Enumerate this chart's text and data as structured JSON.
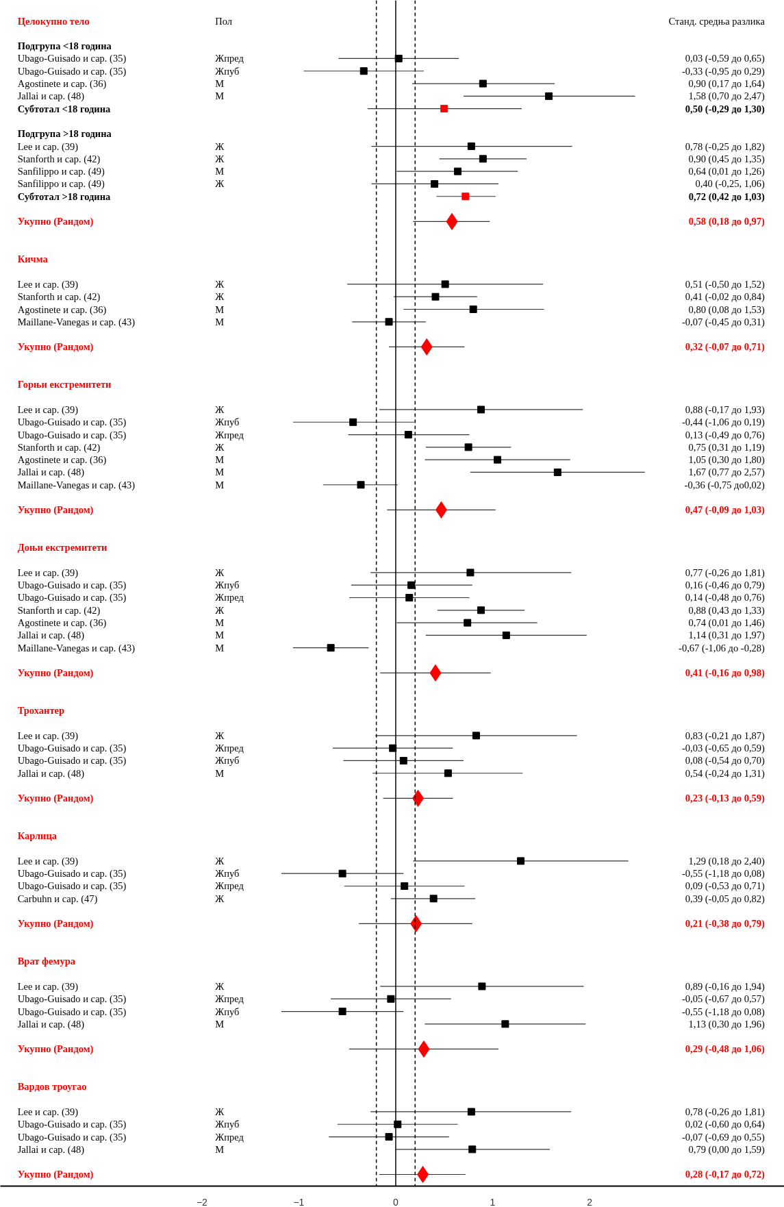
{
  "chart_data": {
    "type": "scatter",
    "orientation": "horizontal",
    "categories": [
      "Целокупно тело",
      null,
      "Подгрупа <18 година",
      "Ubago-Guisado и сар. (35)",
      "Ubago-Guisado и сар. (35)",
      "Agostinete и сар. (36)",
      "Jallai и сар. (48)",
      "Субтотал <18 година",
      null,
      "Подгрупа >18 година",
      "Lee и сар. (39)",
      "Stanforth и сар. (42)",
      "Sanfilippo и сар. (49)",
      "Sanfilippo и сар. (49)",
      "Субтотал >18 година",
      null,
      "Укупно (Рандом)",
      null,
      null,
      "Кичма",
      null,
      "Lee и сар. (39)",
      "Stanforth и сар. (42)",
      "Agostinete и сар. (36)",
      "Maillane-Vanegas и сар. (43)",
      null,
      "Укупно (Рандом)",
      null,
      null,
      "Горњи екстремитети",
      null,
      "Lee и сар. (39)",
      "Ubago-Guisado и сар. (35)",
      "Ubago-Guisado и сар. (35)",
      "Stanforth и сар. (42)",
      "Agostinete и сар. (36)",
      "Jallai и сар. (48)",
      "Maillane-Vanegas и сар. (43)",
      null,
      "Укупно (Рандом)",
      null,
      null,
      "Доњи екстремитети",
      null,
      "Lee и сар. (39)",
      "Ubago-Guisado и сар. (35)",
      "Ubago-Guisado и сар. (35)",
      "Stanforth и сар. (42)",
      "Agostinete и сар. (36)",
      "Jallai и сар. (48)",
      "Maillane-Vanegas и сар. (43)",
      null,
      "Укупно (Рандом)",
      null,
      null,
      "Трохантер",
      null,
      "Lee и сар. (39)",
      "Ubago-Guisado и сар. (35)",
      "Ubago-Guisado и сар. (35)",
      "Jallai и сар. (48)",
      null,
      "Укупно (Рандом)",
      null,
      null,
      "Карлица",
      null,
      "Lee и сар. (39)",
      "Ubago-Guisado и сар. (35)",
      "Ubago-Guisado и сар. (35)",
      "Carbuhn и сар. (47)",
      null,
      "Укупно (Рандом)",
      null,
      null,
      "Врат фемура",
      null,
      "Lee и сар. (39)",
      "Ubago-Guisado и сар. (35)",
      "Ubago-Guisado и сар. (35)",
      "Jallai и сар. (48)",
      null,
      "Укупно (Рандом)",
      null,
      null,
      "Вардов троугао",
      null,
      "Lee и сар. (39)",
      "Ubago-Guisado и сар. (35)",
      "Ubago-Guisado и сар. (35)",
      "Jallai и сар. (48)",
      null,
      "Укупно (Рандом)"
    ],
    "y2_categories": [
      "Пол",
      null,
      null,
      "Жпред",
      "Жпуб",
      "М",
      "М",
      null,
      null,
      null,
      "Ж",
      "Ж",
      "М",
      "Ж",
      null,
      null,
      null,
      null,
      null,
      null,
      null,
      "Ж",
      "Ж",
      "М",
      "М",
      null,
      null,
      null,
      null,
      null,
      null,
      "Ж",
      "Жпуб",
      "Жпред",
      "Ж",
      "М",
      "М",
      "М",
      null,
      null,
      null,
      null,
      null,
      null,
      "Ж",
      "Жпуб",
      "Жпред",
      "Ж",
      "М",
      "М",
      "М",
      null,
      null,
      null,
      null,
      null,
      null,
      "Ж",
      "Жпред",
      "Жпуб",
      "М",
      null,
      null,
      null,
      null,
      null,
      null,
      "Ж",
      "Жпуб",
      "Жпред",
      "Ж",
      null,
      null,
      null,
      null,
      null,
      null,
      "Ж",
      "Жпред",
      "Жпуб",
      "М",
      null,
      null,
      null,
      null,
      null,
      null,
      "Ж",
      "Жпуб",
      "Жпред",
      "М",
      null,
      null
    ],
    "series": [
      {
        "color": "#000000",
        "marker": "square",
        "values": [
          null,
          null,
          null,
          0.03,
          -0.33,
          0.9,
          1.58,
          null,
          null,
          null,
          0.78,
          0.9,
          0.64,
          0.4,
          null,
          null,
          null,
          null,
          null,
          null,
          null,
          0.51,
          0.41,
          0.8,
          -0.07,
          null,
          null,
          null,
          null,
          null,
          null,
          0.88,
          -0.44,
          0.13,
          0.75,
          1.05,
          1.67,
          -0.36,
          null,
          null,
          null,
          null,
          null,
          null,
          0.77,
          0.16,
          0.14,
          0.88,
          0.74,
          1.14,
          -0.67,
          null,
          null,
          null,
          null,
          null,
          null,
          0.83,
          -0.03,
          0.08,
          0.54,
          null,
          null,
          null,
          null,
          null,
          null,
          1.29,
          -0.55,
          0.09,
          0.39,
          null,
          null,
          null,
          null,
          null,
          null,
          0.89,
          -0.05,
          -0.55,
          1.13,
          null,
          null,
          null,
          null,
          null,
          null,
          0.78,
          0.02,
          -0.07,
          0.79,
          null,
          null
        ],
        "errors": [
          null,
          null,
          null,
          [
            -0.59,
            0.65
          ],
          [
            -0.95,
            0.29
          ],
          [
            0.17,
            1.64
          ],
          [
            0.7,
            2.47
          ],
          null,
          null,
          null,
          [
            -0.25,
            1.82
          ],
          [
            0.45,
            1.35
          ],
          [
            0.01,
            1.26
          ],
          [
            -0.25,
            1.06
          ],
          null,
          null,
          null,
          null,
          null,
          null,
          null,
          [
            -0.5,
            1.52
          ],
          [
            -0.02,
            0.84
          ],
          [
            0.08,
            1.53
          ],
          [
            -0.45,
            0.31
          ],
          null,
          null,
          null,
          null,
          null,
          null,
          [
            -0.17,
            1.93
          ],
          [
            -1.06,
            0.19
          ],
          [
            -0.49,
            0.76
          ],
          [
            0.31,
            1.19
          ],
          [
            0.3,
            1.8
          ],
          [
            0.77,
            2.57
          ],
          [
            -0.75,
            0.02
          ],
          null,
          null,
          null,
          null,
          null,
          null,
          [
            -0.26,
            1.81
          ],
          [
            -0.46,
            0.79
          ],
          [
            -0.48,
            0.76
          ],
          [
            0.43,
            1.33
          ],
          [
            0.01,
            1.46
          ],
          [
            0.31,
            1.97
          ],
          [
            -1.06,
            -0.28
          ],
          null,
          null,
          null,
          null,
          null,
          null,
          [
            -0.21,
            1.87
          ],
          [
            -0.65,
            0.59
          ],
          [
            -0.54,
            0.7
          ],
          [
            -0.24,
            1.31
          ],
          null,
          null,
          null,
          null,
          null,
          null,
          [
            0.18,
            2.4
          ],
          [
            -1.18,
            0.08
          ],
          [
            -0.53,
            0.71
          ],
          [
            -0.05,
            0.82
          ],
          null,
          null,
          null,
          null,
          null,
          null,
          [
            -0.16,
            1.94
          ],
          [
            -0.67,
            0.57
          ],
          [
            -1.18,
            0.08
          ],
          [
            0.3,
            1.96
          ],
          null,
          null,
          null,
          null,
          null,
          null,
          [
            -0.26,
            1.81
          ],
          [
            -0.6,
            0.64
          ],
          [
            -0.69,
            0.55
          ],
          [
            0.0,
            1.59
          ],
          null,
          null
        ]
      },
      {
        "color": "#ff0000",
        "marker": "square",
        "values": [
          null,
          null,
          null,
          null,
          null,
          null,
          null,
          0.5,
          null,
          null,
          null,
          null,
          null,
          null,
          0.72,
          null,
          null,
          null,
          null,
          null,
          null,
          null,
          null,
          null,
          null,
          null,
          null,
          null,
          null,
          null,
          null,
          null,
          null,
          null,
          null,
          null,
          null,
          null,
          null,
          null,
          null,
          null,
          null,
          null,
          null,
          null,
          null,
          null,
          null,
          null,
          null,
          null,
          null,
          null,
          null,
          null,
          null,
          null,
          null,
          null,
          null,
          null,
          null,
          null,
          null,
          null,
          null,
          null,
          null,
          null,
          null,
          null,
          null,
          null,
          null,
          null,
          null,
          null,
          null,
          null,
          null,
          null,
          null,
          null,
          null,
          null,
          null,
          null,
          null,
          null,
          null,
          null,
          null
        ],
        "errors": [
          null,
          null,
          null,
          null,
          null,
          null,
          null,
          [
            -0.29,
            1.3
          ],
          null,
          null,
          null,
          null,
          null,
          null,
          [
            0.42,
            1.03
          ],
          null,
          null,
          null,
          null,
          null,
          null,
          null,
          null,
          null,
          null,
          null,
          null,
          null,
          null,
          null,
          null,
          null,
          null,
          null,
          null,
          null,
          null,
          null,
          null,
          null,
          null,
          null,
          null,
          null,
          null,
          null,
          null,
          null,
          null,
          null,
          null,
          null,
          null,
          null,
          null,
          null,
          null,
          null,
          null,
          null,
          null,
          null,
          null,
          null,
          null,
          null,
          null,
          null,
          null,
          null,
          null,
          null,
          null,
          null,
          null,
          null,
          null,
          null,
          null,
          null,
          null,
          null,
          null,
          null,
          null,
          null,
          null,
          null,
          null,
          null,
          null,
          null,
          null
        ]
      },
      {
        "color": "#ff0000",
        "marker": "diamond",
        "values": [
          null,
          null,
          null,
          null,
          null,
          null,
          null,
          null,
          null,
          null,
          null,
          null,
          null,
          null,
          null,
          null,
          0.58,
          null,
          null,
          null,
          null,
          null,
          null,
          null,
          null,
          null,
          0.32,
          null,
          null,
          null,
          null,
          null,
          null,
          null,
          null,
          null,
          null,
          null,
          null,
          0.47,
          null,
          null,
          null,
          null,
          null,
          null,
          null,
          null,
          null,
          null,
          null,
          null,
          0.41,
          null,
          null,
          null,
          null,
          null,
          null,
          null,
          null,
          null,
          0.23,
          null,
          null,
          null,
          null,
          null,
          null,
          null,
          null,
          null,
          0.21,
          null,
          null,
          null,
          null,
          null,
          null,
          null,
          null,
          null,
          0.29,
          null,
          null,
          null,
          null,
          null,
          null,
          null,
          null,
          null,
          0.28
        ],
        "errors": [
          null,
          null,
          null,
          null,
          null,
          null,
          null,
          null,
          null,
          null,
          null,
          null,
          null,
          null,
          null,
          null,
          [
            0.18,
            0.97
          ],
          null,
          null,
          null,
          null,
          null,
          null,
          null,
          null,
          null,
          [
            -0.07,
            0.71
          ],
          null,
          null,
          null,
          null,
          null,
          null,
          null,
          null,
          null,
          null,
          null,
          null,
          [
            -0.09,
            1.03
          ],
          null,
          null,
          null,
          null,
          null,
          null,
          null,
          null,
          null,
          null,
          null,
          null,
          [
            -0.16,
            0.98
          ],
          null,
          null,
          null,
          null,
          null,
          null,
          null,
          null,
          null,
          [
            -0.13,
            0.59
          ],
          null,
          null,
          null,
          null,
          null,
          null,
          null,
          null,
          null,
          [
            -0.38,
            0.79
          ],
          null,
          null,
          null,
          null,
          null,
          null,
          null,
          null,
          null,
          [
            -0.48,
            1.06
          ],
          null,
          null,
          null,
          null,
          null,
          null,
          null,
          null,
          null,
          [
            -0.17,
            0.72
          ]
        ]
      }
    ],
    "xlim": [
      -4.08,
      4.01
    ],
    "xticks": [
      -2,
      -1,
      0,
      1,
      2
    ],
    "ref_lines": [
      {
        "axis": "x",
        "value": 0,
        "line_style": "solid"
      },
      {
        "axis": "x",
        "value": -0.2,
        "line_style": "dashed"
      },
      {
        "axis": "x",
        "value": 0.2,
        "line_style": "dashed"
      }
    ],
    "annotations": [
      "Станд. средња разлика",
      "0,03 (-0,59 до 0,65)",
      "-0,33 (-0,95 до 0,29)",
      "0,90 (0,17 до 1,64)",
      "1,58 (0,70 до 2,47)",
      "0,50 (-0,29 до 1,30)",
      "0,78 (-0,25 до 1,82)",
      "0,90 (0,45 до 1,35)",
      "0,64 (0,01 до 1,26)",
      "0,40 (-0,25, 1,06)",
      "0,72 (0,42 до 1,03)",
      "0,58 (0,18 до 0,97)",
      "0,51 (-0,50 до 1,52)",
      "0,41 (-0,02 до 0,84)",
      "0,80 (0,08 до 1,53)",
      "-0,07 (-0,45 до 0,31)",
      "0,32 (-0,07 до 0,71)",
      "0,88 (-0,17 до 1,93)",
      "-0,44 (-1,06 до 0,19)",
      "0,13 (-0,49 до 0,76)",
      "0,75 (0,31 до 1,19)",
      "1,05 (0,30 до 1,80)",
      "1,67 (0,77 до 2,57)",
      "-0,36 (-0,75 до0,02)",
      "0,47 (-0,09 до 1,03)",
      "0,77 (-0,26 до 1,81)",
      "0,16 (-0,46 до 0,79)",
      "0,14 (-0,48 до 0,76)",
      "0,88 (0,43 до 1,33)",
      "0,74 (0,01 до 1,46)",
      "1,14 (0,31 до 1,97)",
      "-0,67 (-1,06 до -0,28)",
      "0,41 (-0,16 до 0,98)",
      "0,83 (-0,21 до 1,87)",
      "-0,03 (-0,65 до 0,59)",
      "0,08 (-0,54 до 0,70)",
      "0,54 (-0,24 до 1,31)",
      "0,23 (-0,13 до 0,59)",
      "1,29 (0,18 до 2,40)",
      "-0,55 (-1,18 до 0,08)",
      "0,09 (-0,53 до 0,71)",
      "0,39 (-0,05 до 0,82)",
      "0,21 (-0,38 до 0,79)",
      "0,89 (-0,16 до 1,94)",
      "-0,05 (-0,67 до 0,57)",
      "-0,55 (-1,18 до 0,08)",
      "1,13 (0,30 до 1,96)",
      "0,29 (-0,48 до 1,06)",
      "0,78 (-0,26 до 1,81)",
      "0,02 (-0,60 до 0,64)",
      "-0,07 (-0,69 до 0,55)",
      "0,79 (0,00 до 1,59)",
      "0,28 (-0,17 до 0,72)"
    ],
    "grid": false
  }
}
